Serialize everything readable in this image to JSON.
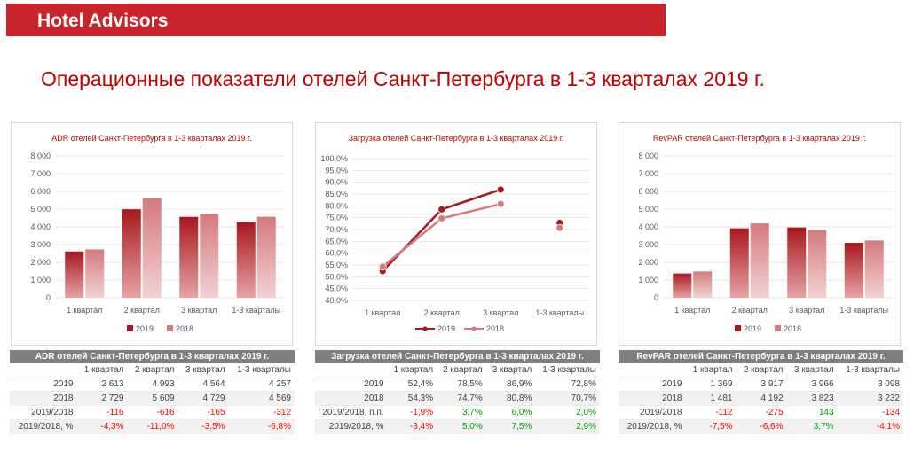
{
  "header": {
    "brand": "Hotel Advisors"
  },
  "page_title": "Операционные показатели отелей Санкт-Петербурга в 1-3 кварталах 2019 г.",
  "colors": {
    "brand_red": "#c8242b",
    "title_red": "#c00000",
    "series_2019": "#a8181e",
    "series_2018": "#d47a7c",
    "negative": "#ff0000",
    "positive": "#00a000",
    "table_header": "#7f7f7f"
  },
  "chart_data": [
    {
      "type": "bar",
      "title": "ADR отелей Санкт-Петербурга в 1-3 кварталах 2019 г.",
      "categories": [
        "1 квартал",
        "2 квартал",
        "3 квартал",
        "1-3 кварталы"
      ],
      "series": [
        {
          "name": "2019",
          "values": [
            2613,
            4993,
            4564,
            4257
          ]
        },
        {
          "name": "2018",
          "values": [
            2729,
            5609,
            4729,
            4569
          ]
        }
      ],
      "yticks": [
        "0",
        "1 000",
        "2 000",
        "3 000",
        "4 000",
        "5 000",
        "6 000",
        "7 000",
        "8 000"
      ],
      "ylim": [
        0,
        8000
      ],
      "legend": "bottom"
    },
    {
      "type": "line",
      "title": "Загрузка отелей Санкт-Петербурга в 1-3 кварталах 2019 г.",
      "categories": [
        "1 квартал",
        "2 квартал",
        "3 квартал",
        "1-3 кварталы"
      ],
      "series": [
        {
          "name": "2019",
          "values": [
            52.4,
            78.5,
            86.9,
            72.8
          ]
        },
        {
          "name": "2018",
          "values": [
            54.3,
            74.7,
            80.8,
            70.7
          ]
        }
      ],
      "yticks": [
        "40,0%",
        "45,0%",
        "50,0%",
        "55,0%",
        "60,0%",
        "65,0%",
        "70,0%",
        "75,0%",
        "80,0%",
        "85,0%",
        "90,0%",
        "95,0%",
        "100,0%"
      ],
      "ylim": [
        40,
        100
      ],
      "legend": "bottom"
    },
    {
      "type": "bar",
      "title": "RevPAR отелей Санкт-Петербурга в 1-3 кварталах 2019 г.",
      "categories": [
        "1 квартал",
        "2 квартал",
        "3 квартал",
        "1-3 кварталы"
      ],
      "series": [
        {
          "name": "2019",
          "values": [
            1369,
            3917,
            3966,
            3098
          ]
        },
        {
          "name": "2018",
          "values": [
            1481,
            4192,
            3823,
            3232
          ]
        }
      ],
      "yticks": [
        "0",
        "1 000",
        "2 000",
        "3 000",
        "4 000",
        "5 000",
        "6 000",
        "7 000",
        "8 000"
      ],
      "ylim": [
        0,
        8000
      ],
      "legend": "bottom"
    }
  ],
  "tables": [
    {
      "title": "ADR отелей Санкт-Петербурга в 1-3 кварталах 2019 г.",
      "columns": [
        "1 квартал",
        "2 квартал",
        "3 квартал",
        "1-3 кварталы"
      ],
      "rows": [
        {
          "label": "2019",
          "cells": [
            "2 613",
            "4 993",
            "4 564",
            "4 257"
          ]
        },
        {
          "label": "2018",
          "cells": [
            "2 729",
            "5 609",
            "4 729",
            "4 569"
          ]
        },
        {
          "label": "2019/2018",
          "cells": [
            "-116",
            "-616",
            "-165",
            "-312"
          ]
        },
        {
          "label": "2019/2018, %",
          "cells": [
            "-4,3%",
            "-11,0%",
            "-3,5%",
            "-6,8%"
          ]
        }
      ]
    },
    {
      "title": "Загрузка отелей Санкт-Петербурга в 1-3 кварталах 2019 г.",
      "columns": [
        "1 квартал",
        "2 квартал",
        "3 квартал",
        "1-3 кварталы"
      ],
      "rows": [
        {
          "label": "2019",
          "cells": [
            "52,4%",
            "78,5%",
            "86,9%",
            "72,8%"
          ]
        },
        {
          "label": "2018",
          "cells": [
            "54,3%",
            "74,7%",
            "80,8%",
            "70,7%"
          ]
        },
        {
          "label": "2019/2018, п.п.",
          "cells": [
            "-1,9%",
            "3,7%",
            "6,0%",
            "2,0%"
          ]
        },
        {
          "label": "2019/2018, %",
          "cells": [
            "-3,4%",
            "5,0%",
            "7,5%",
            "2,9%"
          ]
        }
      ]
    },
    {
      "title": "RevPAR отелей Санкт-Петербурга в 1-3 кварталах 2019 г.",
      "columns": [
        "1 квартал",
        "2 квартал",
        "3 квартал",
        "1-3 кварталы"
      ],
      "rows": [
        {
          "label": "2019",
          "cells": [
            "1 369",
            "3 917",
            "3 966",
            "3 098"
          ]
        },
        {
          "label": "2018",
          "cells": [
            "1 481",
            "4 192",
            "3 823",
            "3 232"
          ]
        },
        {
          "label": "2019/2018",
          "cells": [
            "-112",
            "-275",
            "143",
            "-134"
          ]
        },
        {
          "label": "2019/2018, %",
          "cells": [
            "-7,5%",
            "-6,6%",
            "3,7%",
            "-4,1%"
          ]
        }
      ]
    }
  ]
}
